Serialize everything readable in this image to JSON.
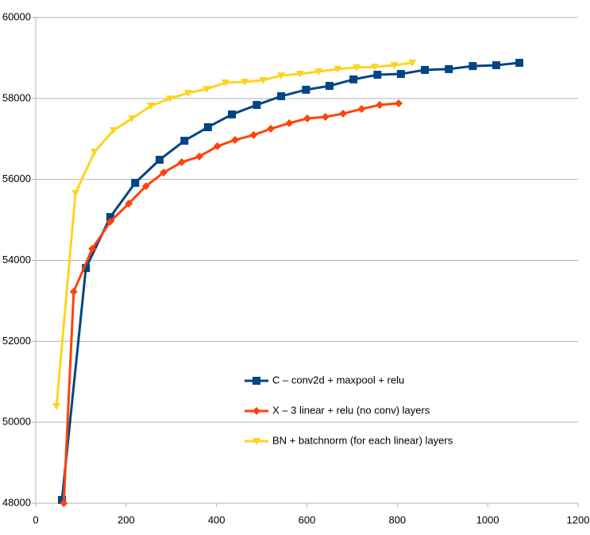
{
  "chart_data": {
    "type": "line",
    "xlim": [
      0,
      1200
    ],
    "xticks": [
      0,
      200,
      400,
      600,
      800,
      1000,
      1200
    ],
    "ylim": [
      48000,
      60000
    ],
    "yticks": [
      48000,
      50000,
      52000,
      54000,
      56000,
      58000,
      60000
    ],
    "grid": true,
    "legend": "inside-lower-center",
    "series": [
      {
        "name": "C – conv2d + maxpool + relu",
        "color": "#004586",
        "marker": "square",
        "x": [
          58,
          111,
          165,
          220,
          274,
          329,
          381,
          434,
          489,
          543,
          598,
          650,
          703,
          756,
          808,
          861,
          914,
          967,
          1019,
          1070
        ],
        "values": [
          48080,
          53810,
          55070,
          55915,
          56485,
          56955,
          57290,
          57605,
          57840,
          58055,
          58215,
          58310,
          58470,
          58585,
          58605,
          58705,
          58725,
          58800,
          58820,
          58880
        ]
      },
      {
        "name": "X – 3 linear + relu (no conv) layers",
        "color": "#ff420e",
        "marker": "diamond",
        "x": [
          62,
          84,
          125,
          165,
          206,
          244,
          283,
          323,
          362,
          402,
          441,
          482,
          520,
          561,
          601,
          641,
          680,
          721,
          761,
          803
        ],
        "values": [
          48000,
          53225,
          54285,
          54955,
          55405,
          55835,
          56170,
          56425,
          56565,
          56820,
          56975,
          57095,
          57250,
          57390,
          57505,
          57545,
          57625,
          57740,
          57840,
          57880
        ]
      },
      {
        "name": "BN + batchnorm (for each linear) layers",
        "color": "#ffd320",
        "marker": "triangle-down",
        "x": [
          46,
          88,
          130,
          172,
          213,
          255,
          297,
          337,
          378,
          420,
          462,
          503,
          543,
          585,
          626,
          668,
          710,
          750,
          793,
          833
        ],
        "values": [
          50395,
          55660,
          56680,
          57210,
          57505,
          57820,
          57995,
          58135,
          58230,
          58390,
          58410,
          58450,
          58565,
          58605,
          58665,
          58725,
          58765,
          58780,
          58820,
          58880
        ]
      }
    ]
  }
}
